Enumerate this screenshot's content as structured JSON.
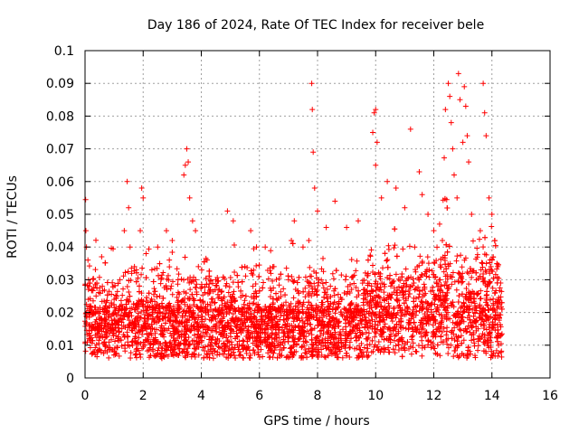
{
  "chart_data": {
    "type": "scatter",
    "title": "Day 186 of 2024, Rate Of TEC Index for receiver bele",
    "xlabel": "GPS time / hours",
    "ylabel": "ROTI / TECUs",
    "xlim": [
      0,
      16
    ],
    "ylim": [
      0,
      0.1
    ],
    "x_ticks": [
      0,
      2,
      4,
      6,
      8,
      10,
      12,
      14,
      16
    ],
    "x_tick_labels": [
      "0",
      "2",
      "4",
      "6",
      "8",
      "10",
      "12",
      "14",
      "16"
    ],
    "y_ticks": [
      0,
      0.01,
      0.02,
      0.03,
      0.04,
      0.05,
      0.06,
      0.07,
      0.08,
      0.09,
      0.1
    ],
    "y_tick_labels": [
      "0",
      "0.01",
      "0.02",
      "0.03",
      "0.04",
      "0.05",
      "0.06",
      "0.07",
      "0.08",
      "0.09",
      "0.1"
    ],
    "grid": true,
    "marker": "+",
    "color": "#ff0000",
    "series": [
      {
        "name": "ROTI",
        "points": [
          [
            0.02,
            0.0545
          ],
          [
            0.03,
            0.045
          ],
          [
            0.05,
            0.04
          ],
          [
            0.1,
            0.036
          ],
          [
            0.12,
            0.03
          ],
          [
            0.15,
            0.028
          ],
          [
            0.2,
            0.022
          ],
          [
            0.3,
            0.02
          ],
          [
            0.5,
            0.018
          ],
          [
            0.7,
            0.022
          ],
          [
            1.0,
            0.024
          ],
          [
            1.2,
            0.03
          ],
          [
            1.35,
            0.045
          ],
          [
            1.45,
            0.06
          ],
          [
            1.5,
            0.052
          ],
          [
            1.55,
            0.04
          ],
          [
            1.7,
            0.034
          ],
          [
            1.9,
            0.045
          ],
          [
            1.95,
            0.058
          ],
          [
            2.0,
            0.055
          ],
          [
            2.1,
            0.038
          ],
          [
            2.3,
            0.033
          ],
          [
            2.5,
            0.04
          ],
          [
            2.8,
            0.045
          ],
          [
            2.9,
            0.036
          ],
          [
            3.0,
            0.042
          ],
          [
            3.2,
            0.03
          ],
          [
            3.4,
            0.062
          ],
          [
            3.45,
            0.065
          ],
          [
            3.5,
            0.07
          ],
          [
            3.55,
            0.066
          ],
          [
            3.6,
            0.055
          ],
          [
            3.7,
            0.048
          ],
          [
            3.8,
            0.045
          ],
          [
            3.9,
            0.034
          ],
          [
            4.2,
            0.036
          ],
          [
            4.5,
            0.03
          ],
          [
            4.9,
            0.051
          ],
          [
            5.1,
            0.048
          ],
          [
            5.5,
            0.034
          ],
          [
            5.7,
            0.045
          ],
          [
            5.9,
            0.04
          ],
          [
            6.2,
            0.04
          ],
          [
            6.5,
            0.034
          ],
          [
            7.0,
            0.03
          ],
          [
            7.1,
            0.042
          ],
          [
            7.2,
            0.048
          ],
          [
            7.5,
            0.04
          ],
          [
            7.7,
            0.042
          ],
          [
            7.8,
            0.09
          ],
          [
            7.82,
            0.082
          ],
          [
            7.85,
            0.069
          ],
          [
            7.9,
            0.058
          ],
          [
            8.0,
            0.051
          ],
          [
            8.3,
            0.046
          ],
          [
            8.6,
            0.054
          ],
          [
            9.0,
            0.046
          ],
          [
            9.4,
            0.048
          ],
          [
            9.9,
            0.075
          ],
          [
            9.95,
            0.081
          ],
          [
            10.0,
            0.082
          ],
          [
            10.05,
            0.072
          ],
          [
            10.0,
            0.065
          ],
          [
            10.2,
            0.055
          ],
          [
            10.4,
            0.06
          ],
          [
            10.7,
            0.058
          ],
          [
            11.0,
            0.052
          ],
          [
            11.2,
            0.076
          ],
          [
            11.5,
            0.063
          ],
          [
            11.6,
            0.056
          ],
          [
            11.8,
            0.05
          ],
          [
            12.0,
            0.045
          ],
          [
            12.2,
            0.047
          ],
          [
            12.4,
            0.082
          ],
          [
            12.5,
            0.09
          ],
          [
            12.55,
            0.086
          ],
          [
            12.6,
            0.078
          ],
          [
            12.65,
            0.07
          ],
          [
            12.7,
            0.062
          ],
          [
            12.8,
            0.055
          ],
          [
            12.85,
            0.093
          ],
          [
            12.9,
            0.085
          ],
          [
            13.0,
            0.072
          ],
          [
            13.05,
            0.089
          ],
          [
            13.1,
            0.083
          ],
          [
            13.15,
            0.074
          ],
          [
            13.2,
            0.066
          ],
          [
            13.3,
            0.05
          ],
          [
            13.6,
            0.045
          ],
          [
            13.7,
            0.09
          ],
          [
            13.75,
            0.081
          ],
          [
            13.8,
            0.074
          ],
          [
            13.9,
            0.055
          ],
          [
            14.0,
            0.05
          ],
          [
            14.1,
            0.042
          ],
          [
            14.2,
            0.034
          ],
          [
            14.3,
            0.029
          ]
        ]
      }
    ]
  }
}
